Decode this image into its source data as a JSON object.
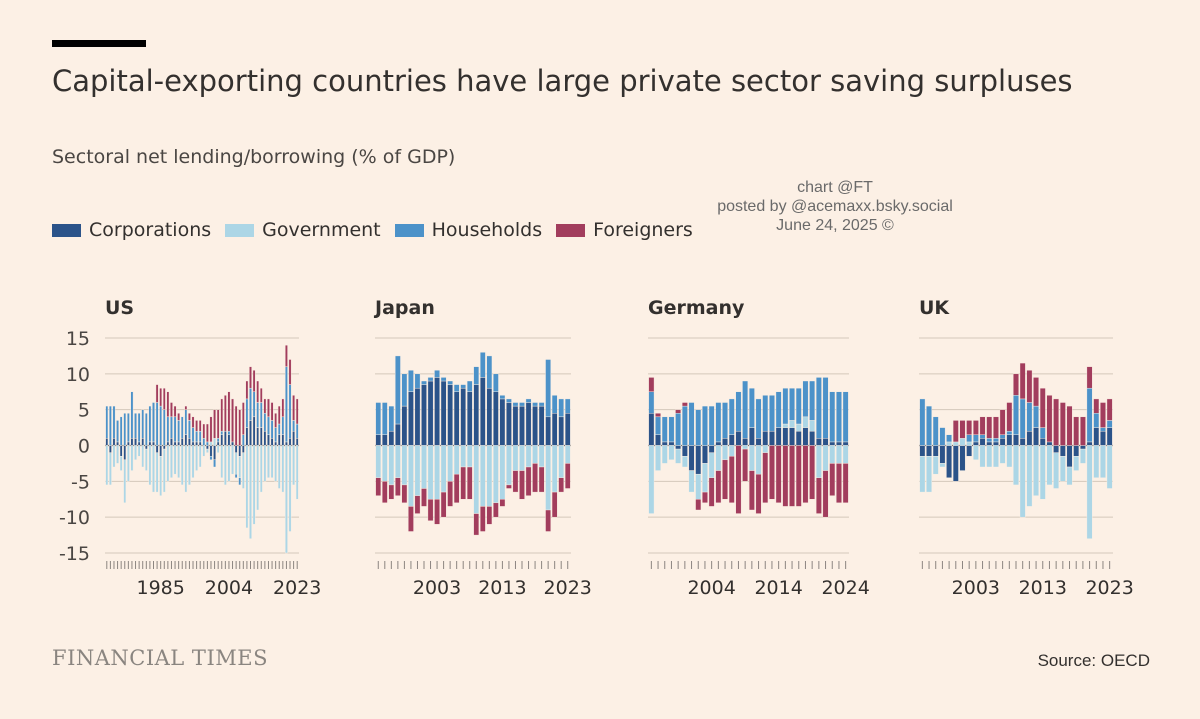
{
  "title": "Capital-exporting countries have large private sector saving surpluses",
  "subtitle": "Sectoral net lending/borrowing (% of GDP)",
  "legend": [
    {
      "label": "Corporations",
      "color": "#2b5389"
    },
    {
      "label": "Government",
      "color": "#acd6e6"
    },
    {
      "label": "Households",
      "color": "#4c92c9"
    },
    {
      "label": "Foreigners",
      "color": "#a23d5d"
    }
  ],
  "watermark": [
    "chart @FT",
    "posted by @acemaxx.bsky.social",
    "June 24, 2025 ©"
  ],
  "footer": {
    "logo": "FINANCIAL TIMES",
    "source": "Source: OECD"
  },
  "chart_data": [
    {
      "type": "bar",
      "title": "US",
      "stacked": true,
      "ylim": [
        -15,
        15
      ],
      "yticks": [
        15,
        10,
        5,
        0,
        -5,
        -10,
        -15
      ],
      "xticks": [
        "1985",
        "2004",
        "2023"
      ],
      "x_start": 1970,
      "x_end": 2023,
      "series": [
        {
          "name": "Corporations",
          "values": [
            1.0,
            -1.0,
            1.0,
            0.5,
            -1.5,
            -2.0,
            0.5,
            1.0,
            1.0,
            0.5,
            1.0,
            -0.5,
            0.5,
            0.5,
            -1.0,
            -1.5,
            -0.5,
            0.5,
            1.0,
            0.5,
            0.5,
            1.0,
            1.5,
            1.0,
            0.5,
            0.5,
            0.5,
            0.0,
            -0.5,
            -1.5,
            -2.0,
            0.5,
            1.5,
            2.0,
            1.5,
            0.5,
            -1.0,
            -1.5,
            -1.0,
            2.5,
            3.5,
            4.0,
            2.5,
            2.5,
            2.0,
            1.5,
            1.0,
            0.5,
            1.5,
            1.5,
            0.5,
            1.0,
            2.0,
            1.0
          ]
        },
        {
          "name": "Government",
          "values": [
            -5.5,
            -4.5,
            -3.0,
            -2.5,
            -2.0,
            -6.0,
            -5.0,
            -3.5,
            -2.0,
            -1.5,
            -3.0,
            -3.0,
            -5.5,
            -6.5,
            -5.5,
            -5.5,
            -6.0,
            -5.0,
            -4.5,
            -4.0,
            -4.5,
            -5.5,
            -6.5,
            -5.5,
            -4.5,
            -3.5,
            -3.0,
            -1.5,
            -0.5,
            0.5,
            1.0,
            -1.0,
            -4.5,
            -5.5,
            -5.0,
            -4.0,
            -3.0,
            -3.0,
            -5.0,
            -11.5,
            -13.0,
            -11.0,
            -9.0,
            -6.5,
            -5.0,
            -4.5,
            -4.5,
            -5.0,
            -6.0,
            -6.5,
            -15.0,
            -12.0,
            -5.5,
            -7.5
          ]
        },
        {
          "name": "Households",
          "values": [
            4.5,
            5.5,
            4.5,
            3.0,
            4.0,
            4.5,
            4.0,
            6.5,
            3.5,
            4.0,
            4.0,
            4.5,
            5.0,
            5.5,
            6.0,
            5.5,
            5.0,
            3.5,
            3.0,
            3.5,
            3.0,
            3.0,
            3.5,
            2.5,
            2.0,
            1.5,
            1.5,
            1.0,
            0.5,
            -0.5,
            -1.0,
            0.5,
            0.5,
            0.0,
            0.5,
            0.0,
            -0.5,
            -1.0,
            1.5,
            4.0,
            4.5,
            3.5,
            3.5,
            3.5,
            2.5,
            2.5,
            2.5,
            2.0,
            1.5,
            2.5,
            10.5,
            7.5,
            1.5,
            2.0
          ]
        },
        {
          "name": "Foreigners",
          "values": [
            0.0,
            0.0,
            0.0,
            0.0,
            0.0,
            0.0,
            0.0,
            0.0,
            0.0,
            0.0,
            0.0,
            0.0,
            0.0,
            0.0,
            2.5,
            2.5,
            3.0,
            3.5,
            2.0,
            1.5,
            1.0,
            0.0,
            0.5,
            1.0,
            1.5,
            1.5,
            1.5,
            2.0,
            2.5,
            3.5,
            4.0,
            4.0,
            4.5,
            5.0,
            5.5,
            6.0,
            5.5,
            5.0,
            4.5,
            2.5,
            3.0,
            3.0,
            3.0,
            2.0,
            2.0,
            2.5,
            2.5,
            2.0,
            2.5,
            2.5,
            3.0,
            3.5,
            3.5,
            3.5
          ]
        }
      ]
    },
    {
      "type": "bar",
      "title": "Japan",
      "stacked": true,
      "ylim": [
        -15,
        15
      ],
      "yticks": [
        15,
        10,
        5,
        0,
        -5,
        -10,
        -15
      ],
      "xticks": [
        "2003",
        "2013",
        "2023"
      ],
      "x_start": 1994,
      "x_end": 2023,
      "series": [
        {
          "name": "Corporations",
          "values": [
            1.5,
            1.5,
            2.0,
            3.0,
            5.5,
            7.5,
            8.0,
            8.5,
            9.0,
            9.5,
            9.0,
            8.5,
            7.5,
            8.0,
            7.5,
            8.5,
            9.5,
            8.0,
            7.5,
            6.5,
            6.0,
            5.5,
            5.5,
            6.0,
            5.5,
            5.5,
            4.0,
            4.5,
            4.0,
            4.5
          ]
        },
        {
          "name": "Government",
          "values": [
            -4.5,
            -5.0,
            -5.5,
            -4.5,
            -5.5,
            -8.5,
            -7.0,
            -6.0,
            -7.5,
            -7.5,
            -6.5,
            -5.0,
            -4.0,
            -3.0,
            -3.0,
            -9.5,
            -8.5,
            -8.5,
            -8.0,
            -7.5,
            -5.5,
            -3.5,
            -3.5,
            -3.0,
            -2.5,
            -3.0,
            -9.0,
            -6.5,
            -4.5,
            -2.5
          ]
        },
        {
          "name": "Households",
          "values": [
            4.5,
            4.5,
            3.5,
            9.5,
            4.5,
            3.0,
            2.0,
            0.5,
            0.5,
            1.0,
            0.5,
            0.5,
            1.0,
            0.5,
            1.5,
            2.5,
            3.5,
            4.5,
            2.5,
            0.5,
            0.5,
            0.5,
            0.5,
            0.5,
            0.5,
            0.5,
            8.0,
            2.5,
            2.5,
            2.0
          ]
        },
        {
          "name": "Foreigners",
          "values": [
            -2.5,
            -3.0,
            -2.0,
            -2.5,
            -2.5,
            -3.5,
            -2.5,
            -2.5,
            -3.0,
            -3.5,
            -3.5,
            -3.5,
            -4.0,
            -4.5,
            -4.5,
            -3.0,
            -3.5,
            -2.5,
            -2.0,
            -1.0,
            -0.5,
            -3.0,
            -4.0,
            -4.0,
            -4.0,
            -3.5,
            -3.0,
            -3.5,
            -2.0,
            -3.5
          ]
        }
      ]
    },
    {
      "type": "bar",
      "title": "Germany",
      "stacked": true,
      "ylim": [
        -15,
        15
      ],
      "yticks": [
        15,
        10,
        5,
        0,
        -5,
        -10,
        -15
      ],
      "xticks": [
        "2004",
        "2014",
        "2024"
      ],
      "x_start": 1995,
      "x_end": 2024,
      "series": [
        {
          "name": "Corporations",
          "values": [
            4.5,
            1.5,
            0.5,
            0.5,
            -0.5,
            -1.5,
            -3.5,
            -4.0,
            -2.5,
            -1.0,
            0.5,
            1.0,
            1.5,
            2.0,
            1.0,
            2.5,
            1.0,
            2.0,
            2.0,
            2.5,
            2.5,
            2.5,
            2.0,
            2.5,
            2.0,
            1.0,
            1.0,
            0.5,
            0.5,
            0.5
          ]
        },
        {
          "name": "Government",
          "values": [
            -9.5,
            -3.5,
            -2.5,
            -2.0,
            -2.0,
            -1.5,
            -3.0,
            -3.5,
            -4.0,
            -3.5,
            -3.5,
            -2.0,
            -1.5,
            0.0,
            -0.5,
            -3.5,
            -4.0,
            -1.0,
            0.0,
            0.0,
            0.5,
            1.0,
            1.0,
            1.5,
            1.5,
            -4.5,
            -3.5,
            -2.5,
            -2.5,
            -2.5
          ]
        },
        {
          "name": "Households",
          "values": [
            3.0,
            2.5,
            3.5,
            3.5,
            4.5,
            5.5,
            6.0,
            5.0,
            5.5,
            5.5,
            5.5,
            5.0,
            5.0,
            5.5,
            8.0,
            5.5,
            5.5,
            5.0,
            5.0,
            5.0,
            5.0,
            4.5,
            5.0,
            5.0,
            5.5,
            8.5,
            8.5,
            7.0,
            7.0,
            7.0
          ]
        },
        {
          "name": "Foreigners",
          "values": [
            2.0,
            0.5,
            0.0,
            0.0,
            0.5,
            0.5,
            0.0,
            -1.5,
            -1.5,
            -4.0,
            -4.5,
            -5.5,
            -6.5,
            -9.5,
            -4.5,
            -5.5,
            -5.5,
            -7.0,
            -7.5,
            -8.0,
            -8.5,
            -8.5,
            -8.5,
            -8.0,
            -7.5,
            -5.0,
            -6.5,
            -4.5,
            -5.5,
            -5.5
          ]
        }
      ]
    },
    {
      "type": "bar",
      "title": "UK",
      "stacked": true,
      "ylim": [
        -15,
        15
      ],
      "yticks": [
        15,
        10,
        5,
        0,
        -5,
        -10,
        -15
      ],
      "xticks": [
        "2003",
        "2013",
        "2023"
      ],
      "x_start": 1995,
      "x_end": 2023,
      "series": [
        {
          "name": "Corporations",
          "values": [
            -1.5,
            -1.5,
            -1.5,
            -2.5,
            -4.5,
            -5.0,
            -3.5,
            -1.5,
            0.5,
            1.0,
            0.5,
            0.5,
            1.0,
            1.5,
            1.5,
            1.0,
            2.0,
            2.5,
            1.0,
            0.5,
            -1.0,
            -1.5,
            -3.0,
            -1.5,
            -0.5,
            0.5,
            2.5,
            2.0,
            2.5
          ]
        },
        {
          "name": "Government",
          "values": [
            -5.0,
            -5.0,
            -2.5,
            -0.5,
            0.5,
            0.5,
            1.0,
            0.5,
            -2.0,
            -3.0,
            -3.0,
            -3.0,
            -2.5,
            -3.0,
            -5.5,
            -10.0,
            -8.5,
            -7.0,
            -7.5,
            -5.5,
            -5.0,
            -3.5,
            -2.5,
            -2.0,
            -2.0,
            -13.0,
            -4.5,
            -4.5,
            -6.0
          ]
        },
        {
          "name": "Households",
          "values": [
            6.5,
            5.5,
            4.0,
            2.5,
            1.0,
            0.0,
            0.0,
            1.0,
            1.0,
            0.5,
            0.5,
            0.5,
            0.5,
            0.5,
            5.5,
            5.5,
            4.0,
            3.0,
            1.5,
            0.0,
            0.0,
            0.0,
            0.0,
            0.0,
            0.0,
            7.5,
            2.0,
            0.5,
            1.0
          ]
        },
        {
          "name": "Foreigners",
          "values": [
            0.0,
            0.0,
            0.0,
            0.0,
            0.0,
            3.0,
            2.5,
            2.0,
            2.0,
            2.5,
            3.0,
            3.0,
            3.5,
            4.0,
            3.0,
            5.0,
            4.5,
            4.0,
            5.5,
            6.5,
            6.5,
            6.0,
            5.5,
            4.0,
            4.0,
            3.0,
            2.0,
            3.5,
            3.0
          ]
        }
      ]
    }
  ]
}
